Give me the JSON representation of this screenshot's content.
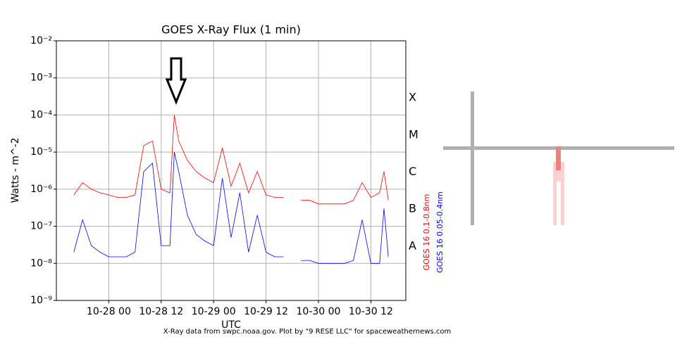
{
  "chart_data": {
    "type": "line",
    "title": "GOES X-Ray Flux (1 min)",
    "x_label": "UTC",
    "y_label": "Watts - m^-2",
    "footer": "X-Ray data from swpc.noaa.gov. Plot by \"9 RESE LLC\" for spaceweathernews.com",
    "class_labels": [
      "X",
      "M",
      "C",
      "B",
      "A"
    ],
    "log_scale": true,
    "grid": true,
    "xlim": [
      "10-27 12",
      "10-30 20"
    ],
    "xticks": [
      "10-28 00",
      "10-28 12",
      "10-29 00",
      "10-29 12",
      "10-30 00",
      "10-30 12"
    ],
    "ylim": [
      1e-09,
      0.01
    ],
    "yticks": [
      {
        "value": 1e-09,
        "label": "10⁻⁹"
      },
      {
        "value": 1e-08,
        "label": "10⁻⁸"
      },
      {
        "value": 1e-07,
        "label": "10⁻⁷"
      },
      {
        "value": 1e-06,
        "label": "10⁻⁶"
      },
      {
        "value": 1e-05,
        "label": "10⁻⁵"
      },
      {
        "value": 0.0001,
        "label": "10⁻⁴"
      },
      {
        "value": 0.001,
        "label": "10⁻³"
      },
      {
        "value": 0.01,
        "label": "10⁻²"
      }
    ],
    "x": [
      "10-27 16",
      "10-27 18",
      "10-27 20",
      "10-27 22",
      "10-28 00",
      "10-28 02",
      "10-28 04",
      "10-28 06",
      "10-28 08",
      "10-28 10",
      "10-28 12",
      "10-28 14",
      "10-28 15",
      "10-28 16",
      "10-28 18",
      "10-28 20",
      "10-28 22",
      "10-29 00",
      "10-29 02",
      "10-29 04",
      "10-29 06",
      "10-29 08",
      "10-29 10",
      "10-29 12",
      "10-29 14",
      "10-29 16",
      "10-29 18",
      "10-29 20",
      "10-29 22",
      "10-30 00",
      "10-30 02",
      "10-30 04",
      "10-30 06",
      "10-30 08",
      "10-30 10",
      "10-30 12",
      "10-30 14",
      "10-30 15",
      "10-30 16"
    ],
    "series": [
      {
        "name": "GOES 16 0.1-0.8nm",
        "color": "#ff0000",
        "values": [
          7e-07,
          1.5e-06,
          1e-06,
          8e-07,
          7e-07,
          6e-07,
          6e-07,
          7e-07,
          1.5e-05,
          2e-05,
          1e-06,
          8e-07,
          0.0001,
          2e-05,
          6e-06,
          3e-06,
          2e-06,
          1.5e-06,
          1.3e-05,
          1.2e-06,
          5e-06,
          8e-07,
          3e-06,
          7e-07,
          6e-07,
          6e-07,
          null,
          5e-07,
          5e-07,
          4e-07,
          4e-07,
          4e-07,
          4e-07,
          5e-07,
          1.5e-06,
          6e-07,
          8e-07,
          3e-06,
          5e-07
        ]
      },
      {
        "name": "GOES 16 0.05-0.4nm",
        "color": "#0000ff",
        "values": [
          2e-08,
          1.5e-07,
          3e-08,
          2e-08,
          1.5e-08,
          1.5e-08,
          1.5e-08,
          2e-08,
          3e-06,
          5e-06,
          3e-08,
          3e-08,
          1e-05,
          3e-06,
          2e-07,
          6e-08,
          4e-08,
          3e-08,
          2e-06,
          5e-08,
          8e-07,
          2e-08,
          2e-07,
          2e-08,
          1.5e-08,
          1.5e-08,
          null,
          1.2e-08,
          1.2e-08,
          1e-08,
          1e-08,
          1e-08,
          1e-08,
          1.2e-08,
          1.5e-07,
          1e-08,
          1e-08,
          3e-07,
          1.5e-08
        ]
      }
    ]
  }
}
